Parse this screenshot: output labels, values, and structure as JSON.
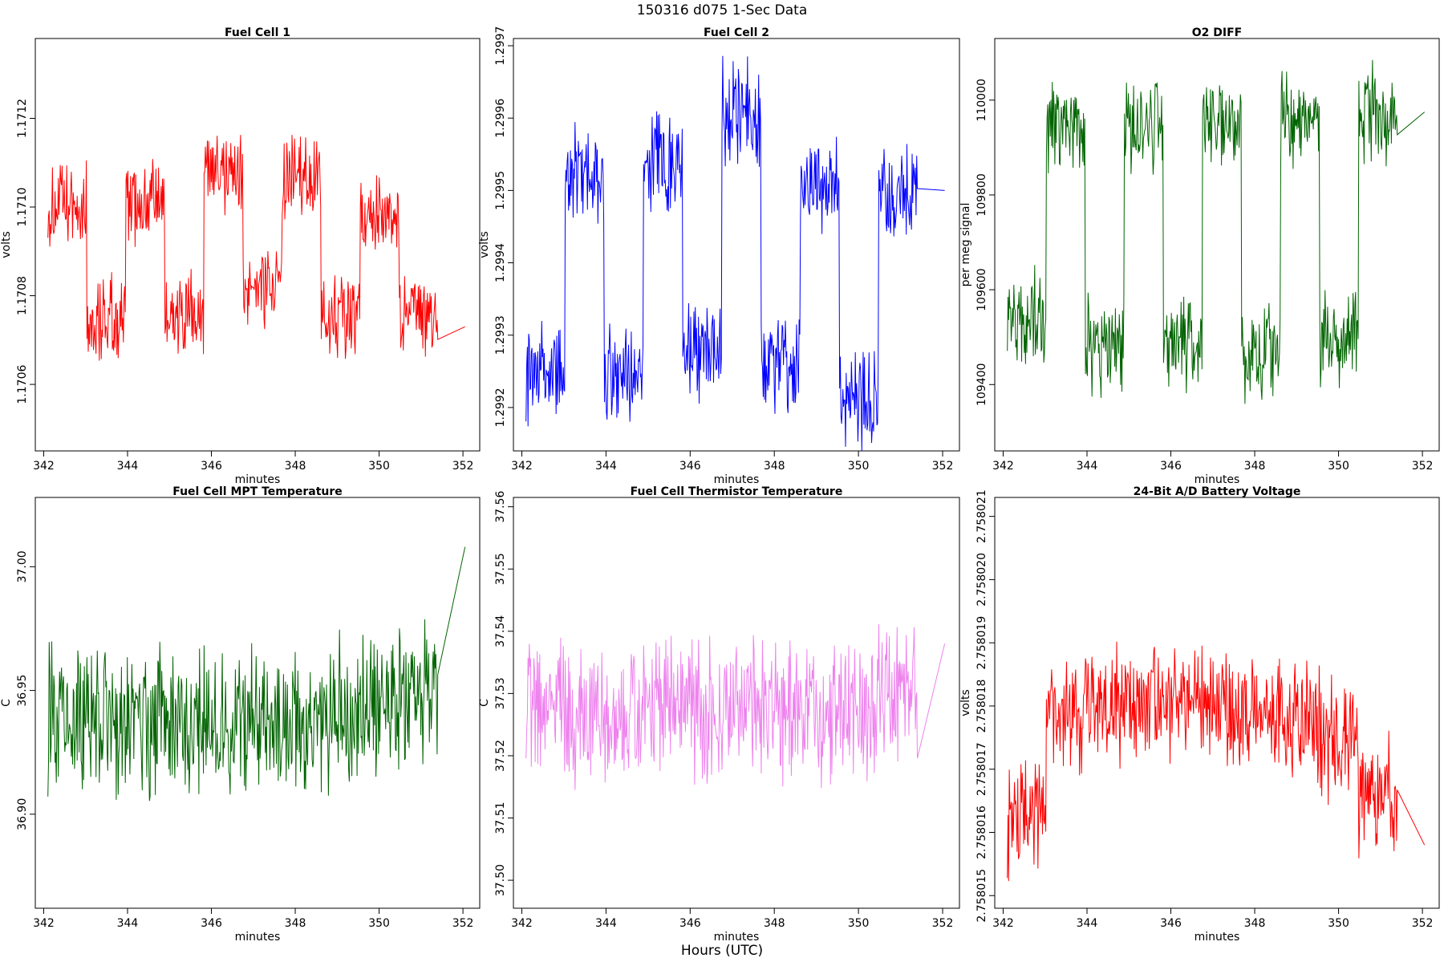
{
  "header": {
    "title": "150316   d075   1-Sec Data",
    "footer": "Hours (UTC)"
  },
  "chart_data": [
    {
      "type": "line",
      "title": "Fuel Cell 1",
      "xlabel": "minutes",
      "ylabel": "volts",
      "color": "#ff0000",
      "xlim": [
        341.8,
        352.4
      ],
      "ylim": [
        1.17045,
        1.17138
      ],
      "xticks": [
        "342",
        "344",
        "346",
        "348",
        "350",
        "352"
      ],
      "xtick_values": [
        342,
        344,
        346,
        348,
        350,
        352
      ],
      "yticks": [
        "1.1706",
        "1.1708",
        "1.1710",
        "1.1712"
      ],
      "ytick_values": [
        1.1706,
        1.1708,
        1.171,
        1.1712
      ],
      "shape": {
        "levels": [
          1.171,
          1.17075,
          1.17101,
          1.17075,
          1.17107,
          1.17083,
          1.17106,
          1.17076,
          1.17098,
          1.17075
        ],
        "noise": 0.00012,
        "end_flat": 1.17073
      },
      "n_points": 600
    },
    {
      "type": "line",
      "title": "Fuel Cell 2",
      "xlabel": "minutes",
      "ylabel": "volts",
      "color": "#0000ff",
      "xlim": [
        341.8,
        352.4
      ],
      "ylim": [
        1.29914,
        1.29971
      ],
      "xticks": [
        "342",
        "344",
        "346",
        "348",
        "350",
        "352"
      ],
      "xtick_values": [
        342,
        344,
        346,
        348,
        350,
        352
      ],
      "yticks": [
        "1.2992",
        "1.2993",
        "1.2994",
        "1.2995",
        "1.2996",
        "1.2997"
      ],
      "ytick_values": [
        1.2992,
        1.2993,
        1.2994,
        1.2995,
        1.2996,
        1.2997
      ],
      "shape": {
        "levels": [
          1.29925,
          1.29952,
          1.29925,
          1.29954,
          1.29928,
          1.29961,
          1.29926,
          1.29951,
          1.29921,
          1.29949
        ],
        "noise": 8e-05,
        "end_flat": 1.2995
      },
      "n_points": 600
    },
    {
      "type": "line",
      "title": "O2 DIFF",
      "xlabel": "minutes",
      "ylabel": "per meg signal",
      "color": "#006400",
      "xlim": [
        341.8,
        352.4
      ],
      "ylim": [
        109260,
        110130
      ],
      "xticks": [
        "342",
        "344",
        "346",
        "348",
        "350",
        "352"
      ],
      "xtick_values": [
        342,
        344,
        346,
        348,
        350,
        352
      ],
      "yticks": [
        "109400",
        "109600",
        "109800",
        "110000"
      ],
      "ytick_values": [
        109400,
        109600,
        109800,
        110000
      ],
      "shape": {
        "levels": [
          109540,
          109950,
          109480,
          109950,
          109480,
          109960,
          109470,
          109960,
          109500,
          109970
        ],
        "noise": 120,
        "end_flat": 109975
      },
      "n_points": 600
    },
    {
      "type": "line",
      "title": "Fuel Cell MPT Temperature",
      "xlabel": "minutes",
      "ylabel": "C",
      "color": "#006400",
      "xlim": [
        341.8,
        352.4
      ],
      "ylim": [
        36.862,
        37.028
      ],
      "xticks": [
        "342",
        "344",
        "346",
        "348",
        "350",
        "352"
      ],
      "xtick_values": [
        342,
        344,
        346,
        348,
        350,
        352
      ],
      "yticks": [
        "36.90",
        "36.95",
        "37.00"
      ],
      "ytick_values": [
        36.9,
        36.95,
        37.0
      ],
      "shape": {
        "levels": [
          36.937,
          36.937,
          36.937,
          36.937,
          36.937,
          36.937,
          36.937,
          36.94,
          36.945,
          36.95
        ],
        "noise": 0.035,
        "end_flat": 37.008
      },
      "n_points": 600
    },
    {
      "type": "line",
      "title": "Fuel Cell Thermistor Temperature",
      "xlabel": "minutes",
      "ylabel": "C",
      "color": "#ee82ee",
      "xlim": [
        341.8,
        352.4
      ],
      "ylim": [
        37.4955,
        37.5615
      ],
      "xticks": [
        "342",
        "344",
        "346",
        "348",
        "350",
        "352"
      ],
      "xtick_values": [
        342,
        344,
        346,
        348,
        350,
        352
      ],
      "yticks": [
        "37.50",
        "37.51",
        "37.52",
        "37.53",
        "37.54",
        "37.55",
        "37.56"
      ],
      "ytick_values": [
        37.5,
        37.51,
        37.52,
        37.53,
        37.54,
        37.55,
        37.56
      ],
      "shape": {
        "levels": [
          37.527,
          37.526,
          37.526,
          37.527,
          37.527,
          37.527,
          37.527,
          37.527,
          37.528,
          37.53
        ],
        "noise": 0.013,
        "end_flat": 37.538
      },
      "n_points": 600
    },
    {
      "type": "line",
      "title": "24-Bit A/D Battery Voltage",
      "xlabel": "minutes",
      "ylabel": "volts",
      "color": "#ff0000",
      "xlim": [
        341.8,
        352.4
      ],
      "ylim": [
        2.7580148,
        2.7580213
      ],
      "xticks": [
        "342",
        "344",
        "346",
        "348",
        "350",
        "352"
      ],
      "xtick_values": [
        342,
        344,
        346,
        348,
        350,
        352
      ],
      "yticks": [
        "2.758015",
        "2.758016",
        "2.758017",
        "2.758018",
        "2.758019",
        "2.758020",
        "2.758021"
      ],
      "ytick_values": [
        2.758015,
        2.758016,
        2.758017,
        2.758018,
        2.758019,
        2.75802,
        2.758021
      ],
      "shape": {
        "levels": [
          2.7580162,
          2.7580178,
          2.758018,
          2.7580181,
          2.7580181,
          2.758018,
          2.758018,
          2.7580178,
          2.7580174,
          2.7580166
        ],
        "noise": 1.1e-06,
        "end_flat": 2.7580158
      },
      "n_points": 600
    }
  ]
}
